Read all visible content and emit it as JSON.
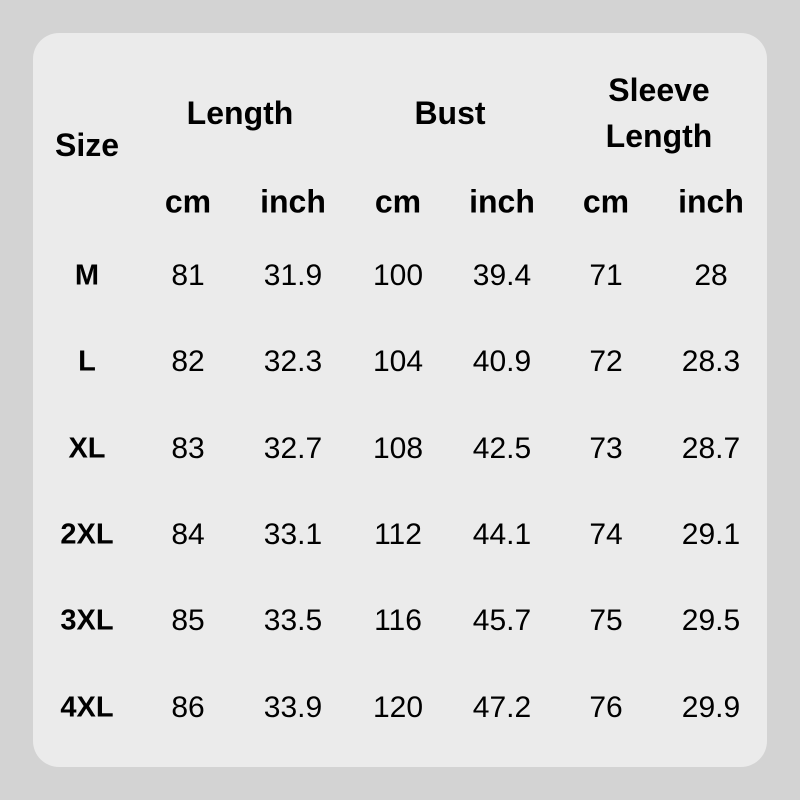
{
  "headers": {
    "size": "Size",
    "length": "Length",
    "bust": "Bust",
    "sleeve_length": "Sleeve Length"
  },
  "units": [
    "cm",
    "inch",
    "cm",
    "inch",
    "cm",
    "inch"
  ],
  "rows": [
    {
      "size": "M",
      "values": [
        "81",
        "31.9",
        "100",
        "39.4",
        "71",
        "28"
      ]
    },
    {
      "size": "L",
      "values": [
        "82",
        "32.3",
        "104",
        "40.9",
        "72",
        "28.3"
      ]
    },
    {
      "size": "XL",
      "values": [
        "83",
        "32.7",
        "108",
        "42.5",
        "73",
        "28.7"
      ]
    },
    {
      "size": "2XL",
      "values": [
        "84",
        "33.1",
        "112",
        "44.1",
        "74",
        "29.1"
      ]
    },
    {
      "size": "3XL",
      "values": [
        "85",
        "33.5",
        "116",
        "45.7",
        "75",
        "29.5"
      ]
    },
    {
      "size": "4XL",
      "values": [
        "86",
        "33.9",
        "120",
        "47.2",
        "76",
        "29.9"
      ]
    }
  ],
  "colors": {
    "background": "#d3d3d3",
    "card": "#ebebeb",
    "text": "#000000"
  }
}
